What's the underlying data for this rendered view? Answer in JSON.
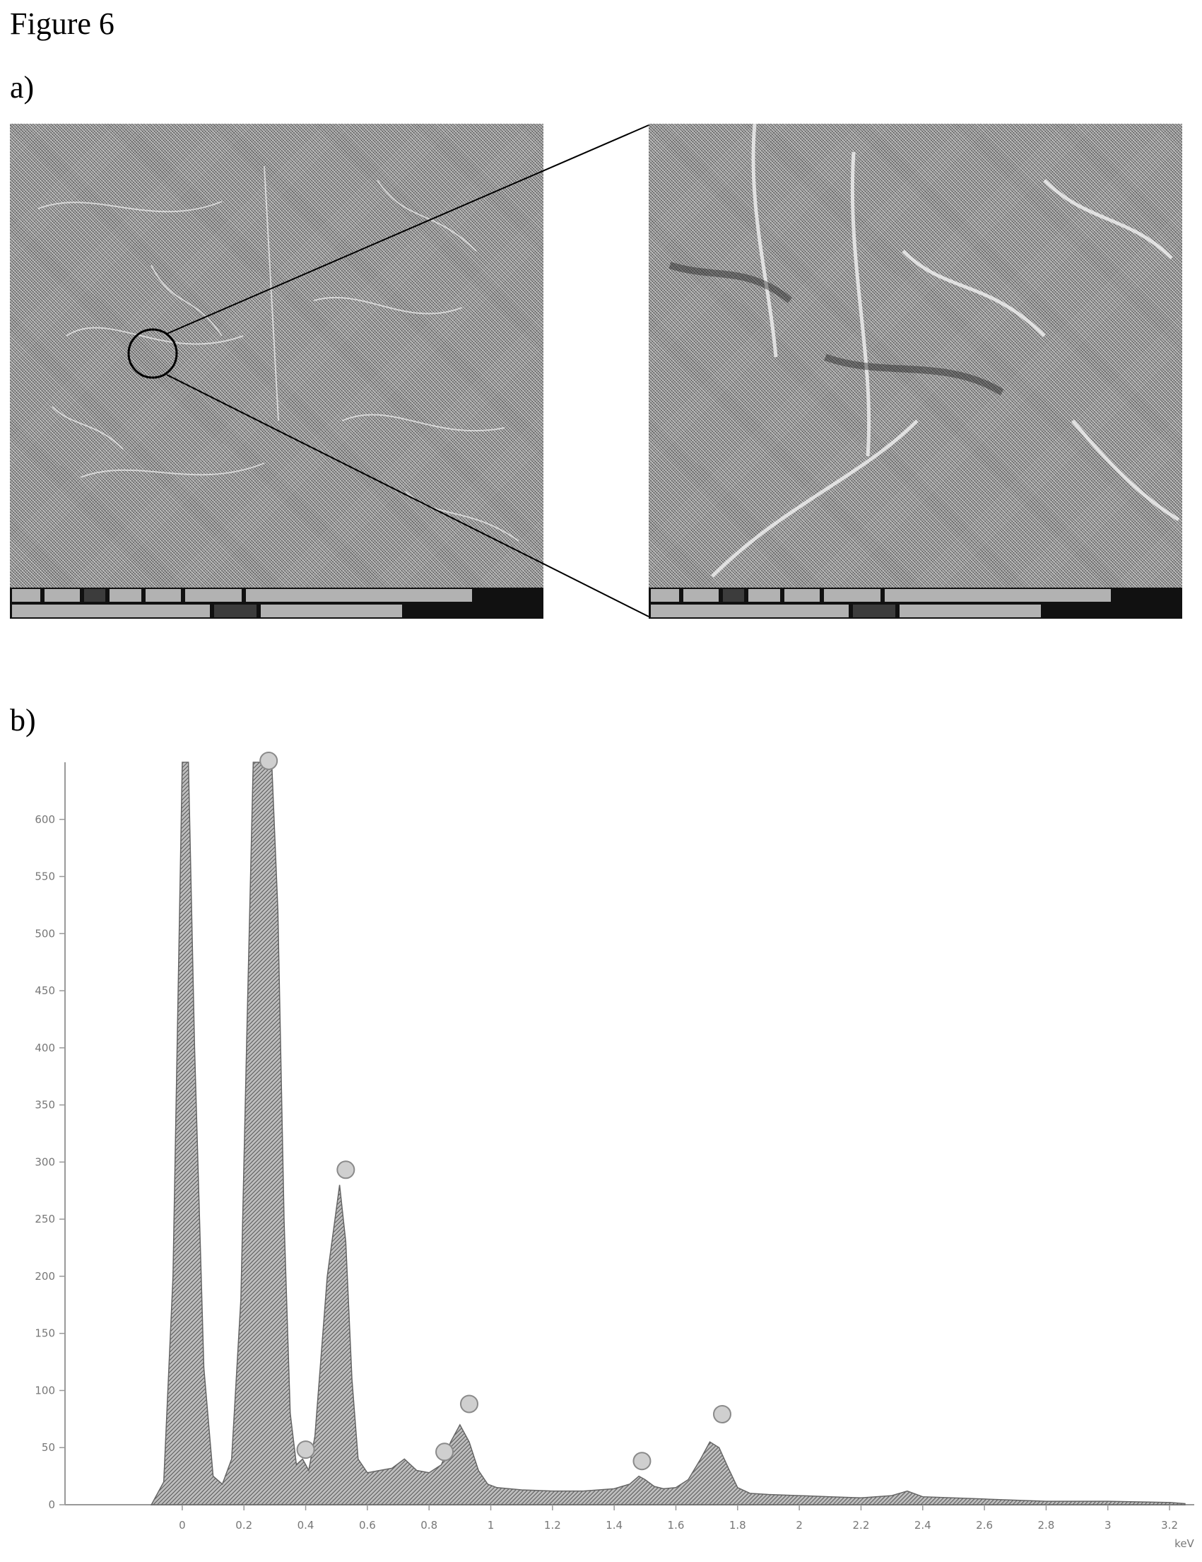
{
  "figure_title": "Figure 6",
  "panel_a_label": "a)",
  "panel_b_label": "b)",
  "chart_data": {
    "type": "area",
    "title": "",
    "xlabel": "keV",
    "ylabel": "",
    "xlim": [
      -0.38,
      3.28
    ],
    "ylim": [
      0,
      650
    ],
    "x_ticks": [
      "0",
      "0.2",
      "0.4",
      "0.6",
      "0.8",
      "1",
      "1.2",
      "1.4",
      "1.6",
      "1.8",
      "2",
      "2.2",
      "2.4",
      "2.6",
      "2.8",
      "3",
      "3.2"
    ],
    "y_ticks": [
      "0",
      "50",
      "100",
      "150",
      "200",
      "250",
      "300",
      "350",
      "400",
      "450",
      "500",
      "550",
      "600"
    ],
    "grid": false,
    "series": [
      {
        "x": [
          -0.1,
          -0.06,
          -0.03,
          -0.01,
          0.0,
          0.02,
          0.04,
          0.07,
          0.1,
          0.13,
          0.16,
          0.19,
          0.21,
          0.23,
          0.25,
          0.27,
          0.29,
          0.31,
          0.33,
          0.35,
          0.37,
          0.39,
          0.41,
          0.43,
          0.45,
          0.47,
          0.49,
          0.51,
          0.53,
          0.55,
          0.57,
          0.6,
          0.64,
          0.68,
          0.72,
          0.76,
          0.8,
          0.84,
          0.87,
          0.9,
          0.93,
          0.96,
          0.99,
          1.02,
          1.06,
          1.1,
          1.2,
          1.3,
          1.4,
          1.45,
          1.48,
          1.5,
          1.53,
          1.56,
          1.6,
          1.64,
          1.68,
          1.71,
          1.74,
          1.77,
          1.8,
          1.84,
          1.9,
          2.0,
          2.1,
          2.2,
          2.3,
          2.35,
          2.4,
          2.6,
          2.8,
          3.0,
          3.2,
          3.25
        ],
        "values": [
          0,
          20,
          200,
          500,
          650,
          650,
          400,
          120,
          25,
          18,
          40,
          180,
          420,
          650,
          650,
          650,
          650,
          520,
          250,
          80,
          35,
          40,
          30,
          60,
          130,
          200,
          240,
          280,
          230,
          110,
          40,
          28,
          30,
          32,
          40,
          30,
          28,
          35,
          55,
          70,
          55,
          30,
          18,
          15,
          14,
          13,
          12,
          12,
          14,
          18,
          25,
          22,
          16,
          14,
          15,
          22,
          40,
          55,
          50,
          32,
          15,
          10,
          9,
          8,
          7,
          6,
          8,
          12,
          7,
          5,
          3,
          3,
          2,
          1
        ]
      }
    ],
    "peak_markers": [
      {
        "x": 0.28,
        "y": 650
      },
      {
        "x": 0.53,
        "y": 292
      },
      {
        "x": 0.4,
        "y": 47
      },
      {
        "x": 0.85,
        "y": 45
      },
      {
        "x": 0.93,
        "y": 87
      },
      {
        "x": 1.49,
        "y": 37
      },
      {
        "x": 1.75,
        "y": 78
      }
    ]
  }
}
